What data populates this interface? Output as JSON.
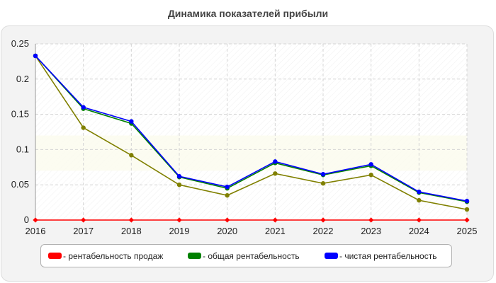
{
  "chart_data": {
    "type": "line",
    "title": "Динамика показателей прибыли",
    "x": [
      "2016",
      "2017",
      "2018",
      "2019",
      "2020",
      "2021",
      "2022",
      "2023",
      "2024",
      "2025"
    ],
    "ylim": [
      0,
      0.25
    ],
    "yticks": [
      "0",
      "0.05",
      "0.1",
      "0.15",
      "0.2",
      "0.25"
    ],
    "grid": true,
    "legend_position": "bottom",
    "series": [
      {
        "name": "- рентабельность продаж",
        "color": "#ff0000",
        "values": [
          0,
          0,
          0,
          0,
          0,
          0,
          0,
          0,
          0,
          0
        ]
      },
      {
        "name": "- общая рентабельность",
        "color": "#008000",
        "values": [
          0.233,
          0.158,
          0.137,
          0.061,
          0.045,
          0.081,
          0.064,
          0.077,
          0.039,
          0.026
        ]
      },
      {
        "name": "- чистая рентабельность",
        "color": "#0000ff",
        "values": [
          0.233,
          0.16,
          0.14,
          0.062,
          0.047,
          0.083,
          0.065,
          0.079,
          0.04,
          0.027
        ]
      },
      {
        "color": "#808000",
        "values": [
          0.233,
          0.131,
          0.092,
          0.05,
          0.035,
          0.066,
          0.052,
          0.064,
          0.028,
          0.015
        ]
      }
    ]
  }
}
